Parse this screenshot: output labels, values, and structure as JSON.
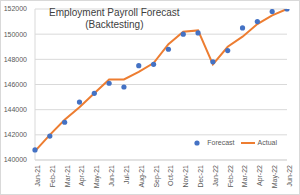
{
  "chart_data": {
    "type": "line",
    "title": "Employment Payroll Forecast",
    "subtitle": "(Backtesting)",
    "categories": [
      "Jan-21",
      "Feb-21",
      "Mar-21",
      "Apr-21",
      "May-21",
      "Jun-21",
      "Jul-21",
      "Aug-21",
      "Sep-21",
      "Oct-21",
      "Nov-21",
      "Dec-21",
      "Jan-22",
      "Feb-22",
      "Mar-22",
      "Apr-22",
      "May-22",
      "Jun-22"
    ],
    "series": [
      {
        "name": "Forecast",
        "color": "#4472c4",
        "marker": "circle",
        "line_style": "none",
        "values": [
          140800,
          141900,
          143000,
          144600,
          145300,
          146100,
          145800,
          147500,
          147600,
          148800,
          150000,
          150100,
          147800,
          148700,
          150500,
          151000,
          151800,
          152000
        ]
      },
      {
        "name": "Actual",
        "color": "#ed7d31",
        "marker": "none",
        "line_style": "solid",
        "values": [
          140700,
          142000,
          143200,
          144200,
          145300,
          146400,
          146400,
          147000,
          147700,
          149200,
          150200,
          150300,
          147600,
          149000,
          149800,
          150800,
          151500,
          152000
        ]
      }
    ],
    "ylim": [
      140000,
      152000
    ],
    "yticks": [
      140000,
      142000,
      144000,
      146000,
      148000,
      150000,
      152000
    ],
    "grid": true,
    "legend": "lower right"
  }
}
